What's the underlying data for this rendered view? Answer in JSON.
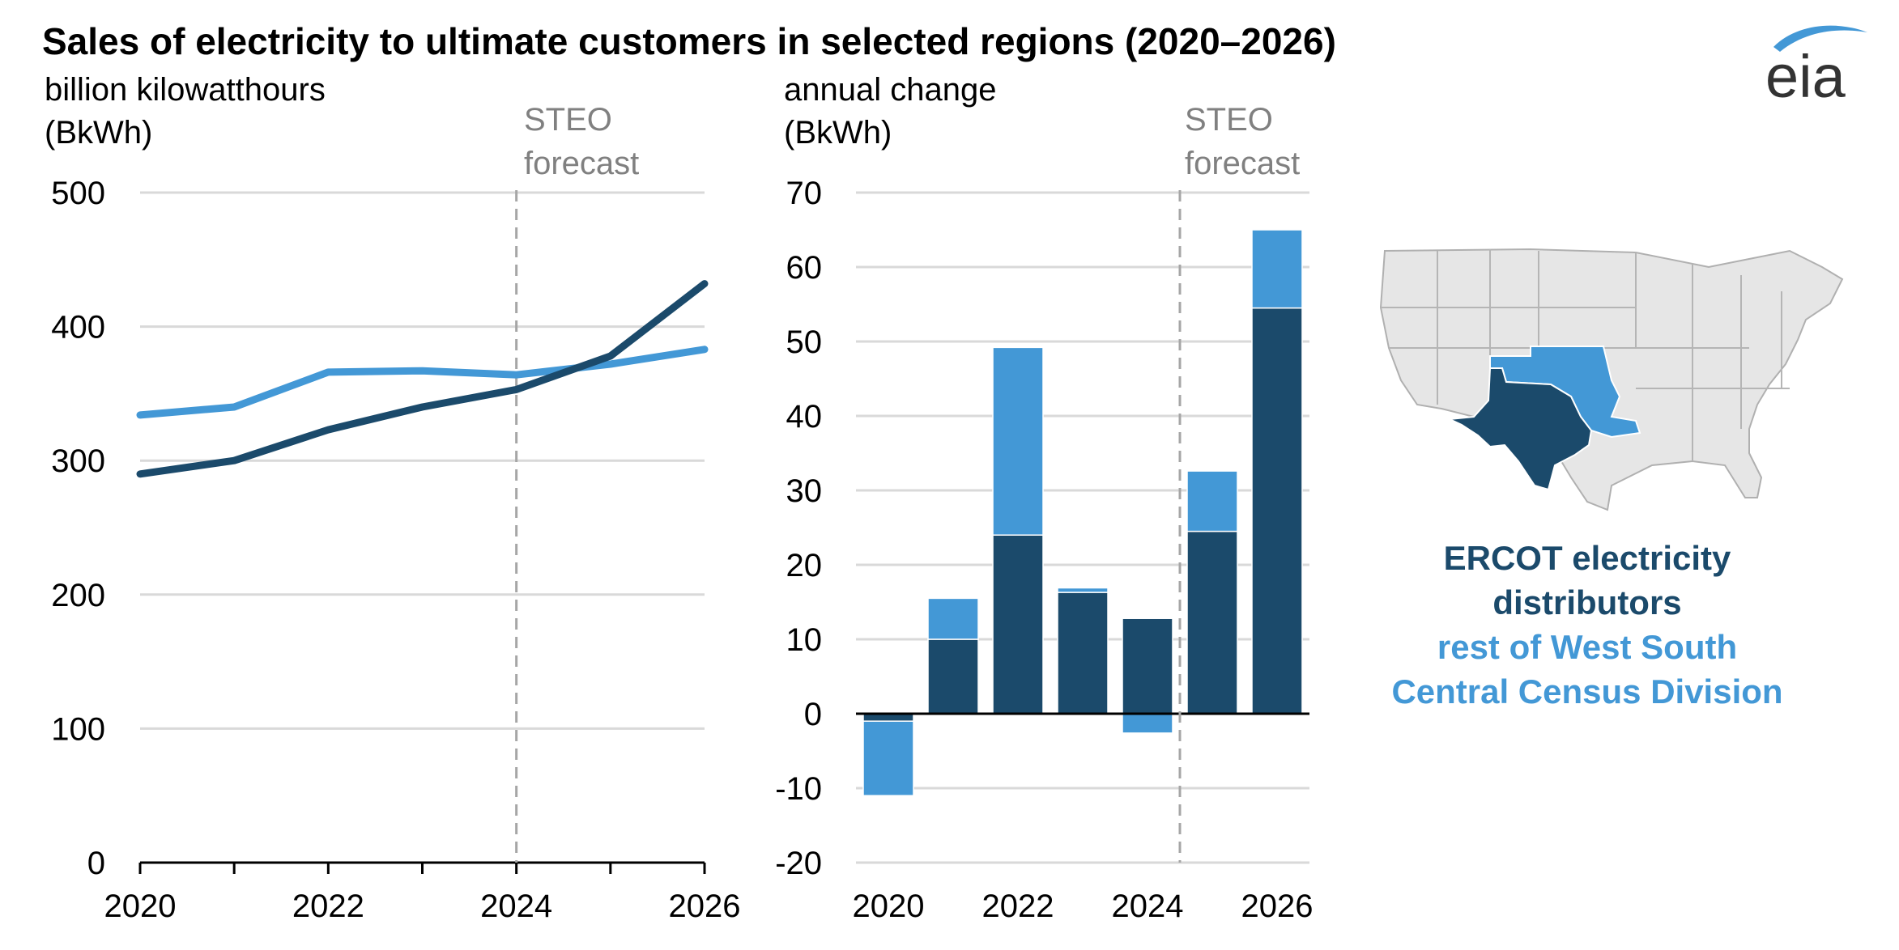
{
  "title": "Sales of electricity to ultimate customers in selected regions (2020–2026)",
  "logo_text": "eia",
  "colors": {
    "ercot": "#1b4a6b",
    "rest": "#4398d6",
    "grid": "#d9d9d9",
    "forecast": "#a6a6a6",
    "map_fill": "#e6e6e6",
    "map_border": "#b0b0b0"
  },
  "legend": {
    "ercot_line1": "ERCOT electricity",
    "ercot_line2": "distributors",
    "rest_line1": "rest of West South",
    "rest_line2": "Central Census Division"
  },
  "map_icon": "us-states-map-west-south-central-highlighted",
  "chart_data": [
    {
      "type": "line",
      "ylabel_line1": "billion kilowatthours",
      "ylabel_line2": "(BkWh)",
      "forecast_label_line1": "STEO",
      "forecast_label_line2": "forecast",
      "forecast_start_year": 2024,
      "x": [
        2020,
        2021,
        2022,
        2023,
        2024,
        2025,
        2026
      ],
      "x_tick_labels": [
        "2020",
        "2022",
        "2024",
        "2026"
      ],
      "ylim": [
        0,
        500
      ],
      "y_ticks": [
        0,
        100,
        200,
        300,
        400,
        500
      ],
      "series": [
        {
          "name": "ERCOT electricity distributors",
          "color": "#1b4a6b",
          "values": [
            290,
            300,
            323,
            340,
            353,
            378,
            432
          ]
        },
        {
          "name": "rest of West South Central Census Division",
          "color": "#4398d6",
          "values": [
            334,
            340,
            366,
            367,
            364,
            372,
            383
          ]
        }
      ]
    },
    {
      "type": "bar",
      "stacked": true,
      "ylabel_line1": "annual change",
      "ylabel_line2": "(BkWh)",
      "forecast_label_line1": "STEO",
      "forecast_label_line2": "forecast",
      "forecast_after_year": 2024,
      "categories": [
        2020,
        2021,
        2022,
        2023,
        2024,
        2025,
        2026
      ],
      "x_tick_labels": [
        "2020",
        "2022",
        "2024",
        "2026"
      ],
      "ylim": [
        -20,
        70
      ],
      "y_ticks": [
        -20,
        -10,
        0,
        10,
        20,
        30,
        40,
        50,
        60,
        70
      ],
      "series": [
        {
          "name": "ERCOT electricity distributors",
          "color": "#1b4a6b",
          "values": [
            -1,
            10,
            24,
            16.3,
            12.8,
            24.5,
            54.5
          ]
        },
        {
          "name": "rest of West South Central Census Division",
          "color": "#4398d6",
          "values": [
            -10,
            5.5,
            25.2,
            0.6,
            -2.6,
            8.1,
            10.5
          ]
        }
      ]
    }
  ]
}
